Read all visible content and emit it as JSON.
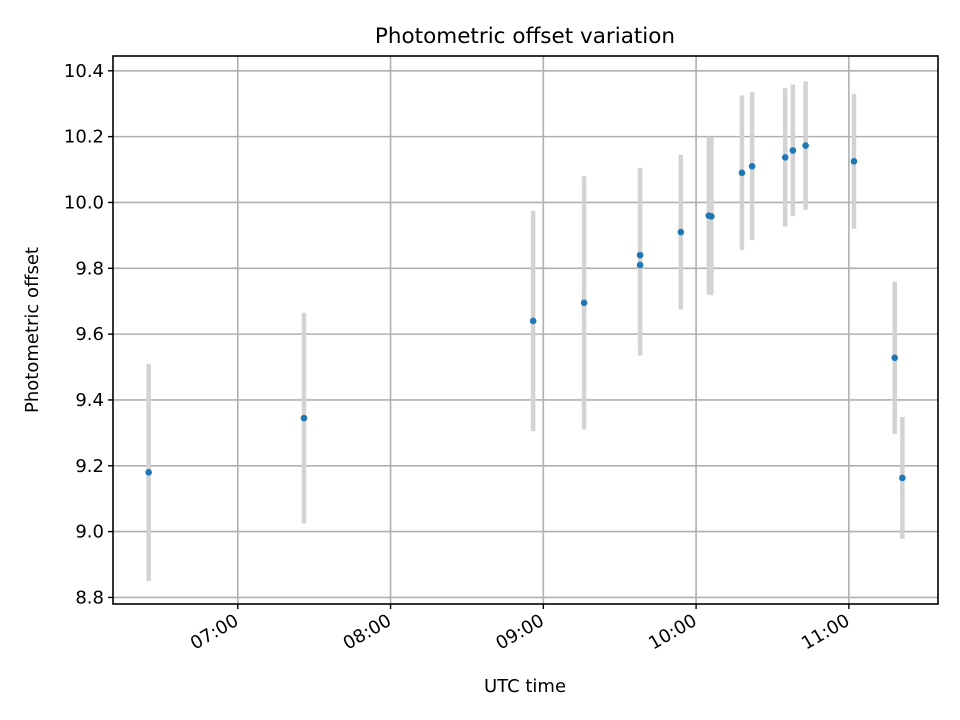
{
  "chart_data": {
    "type": "scatter",
    "title": "Photometric offset variation",
    "xlabel": "UTC time",
    "ylabel": "Photometric offset",
    "xlim": [
      "06:11",
      "11:35"
    ],
    "ylim": [
      8.78,
      10.445
    ],
    "x_ticks": [
      "07:00",
      "08:00",
      "09:00",
      "10:00",
      "11:00"
    ],
    "y_ticks": [
      "8.8",
      "9.0",
      "9.2",
      "9.4",
      "9.6",
      "9.8",
      "10.0",
      "10.2",
      "10.4"
    ],
    "grid": true,
    "colors": {
      "point": "#1f77b4",
      "errorbar": "#d3d3d3",
      "grid": "#b0b0b0"
    },
    "points": [
      {
        "x": "06:25",
        "y": 9.18,
        "err": 0.33
      },
      {
        "x": "07:26",
        "y": 9.345,
        "err": 0.32
      },
      {
        "x": "08:56",
        "y": 9.64,
        "err": 0.335
      },
      {
        "x": "09:16",
        "y": 9.695,
        "err": 0.385
      },
      {
        "x": "09:38",
        "y": 9.84,
        "err": 0.265
      },
      {
        "x": "09:38",
        "y": 9.81,
        "err": 0.275
      },
      {
        "x": "09:54",
        "y": 9.91,
        "err": 0.235
      },
      {
        "x": "10:05",
        "y": 9.96,
        "err": 0.24
      },
      {
        "x": "10:06",
        "y": 9.958,
        "err": 0.24
      },
      {
        "x": "10:18",
        "y": 10.09,
        "err": 0.235
      },
      {
        "x": "10:22",
        "y": 10.11,
        "err": 0.225
      },
      {
        "x": "10:35",
        "y": 10.137,
        "err": 0.21
      },
      {
        "x": "10:38",
        "y": 10.158,
        "err": 0.2
      },
      {
        "x": "10:43",
        "y": 10.173,
        "err": 0.195
      },
      {
        "x": "11:02",
        "y": 10.125,
        "err": 0.205
      },
      {
        "x": "11:18",
        "y": 9.528,
        "err": 0.232
      },
      {
        "x": "11:21",
        "y": 9.163,
        "err": 0.185
      }
    ]
  }
}
